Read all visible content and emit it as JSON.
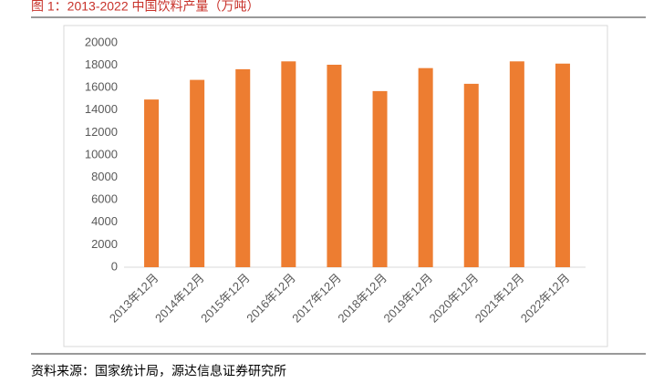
{
  "chart_data": {
    "type": "bar",
    "title": "图 1：2013-2022 中国饮料产量（万吨）",
    "source": "资料来源：国家统计局，源达信息证券研究所",
    "categories": [
      "2013年12月",
      "2014年12月",
      "2015年12月",
      "2016年12月",
      "2017年12月",
      "2018年12月",
      "2019年12月",
      "2020年12月",
      "2021年12月",
      "2022年12月"
    ],
    "values": [
      14950,
      16700,
      17650,
      18350,
      18050,
      15700,
      17750,
      16350,
      18350,
      18150
    ],
    "color": "#ed7d31",
    "ylim": [
      0,
      20000
    ],
    "yticks": [
      0,
      2000,
      4000,
      6000,
      8000,
      10000,
      12000,
      14000,
      16000,
      18000,
      20000
    ],
    "grid": false
  }
}
